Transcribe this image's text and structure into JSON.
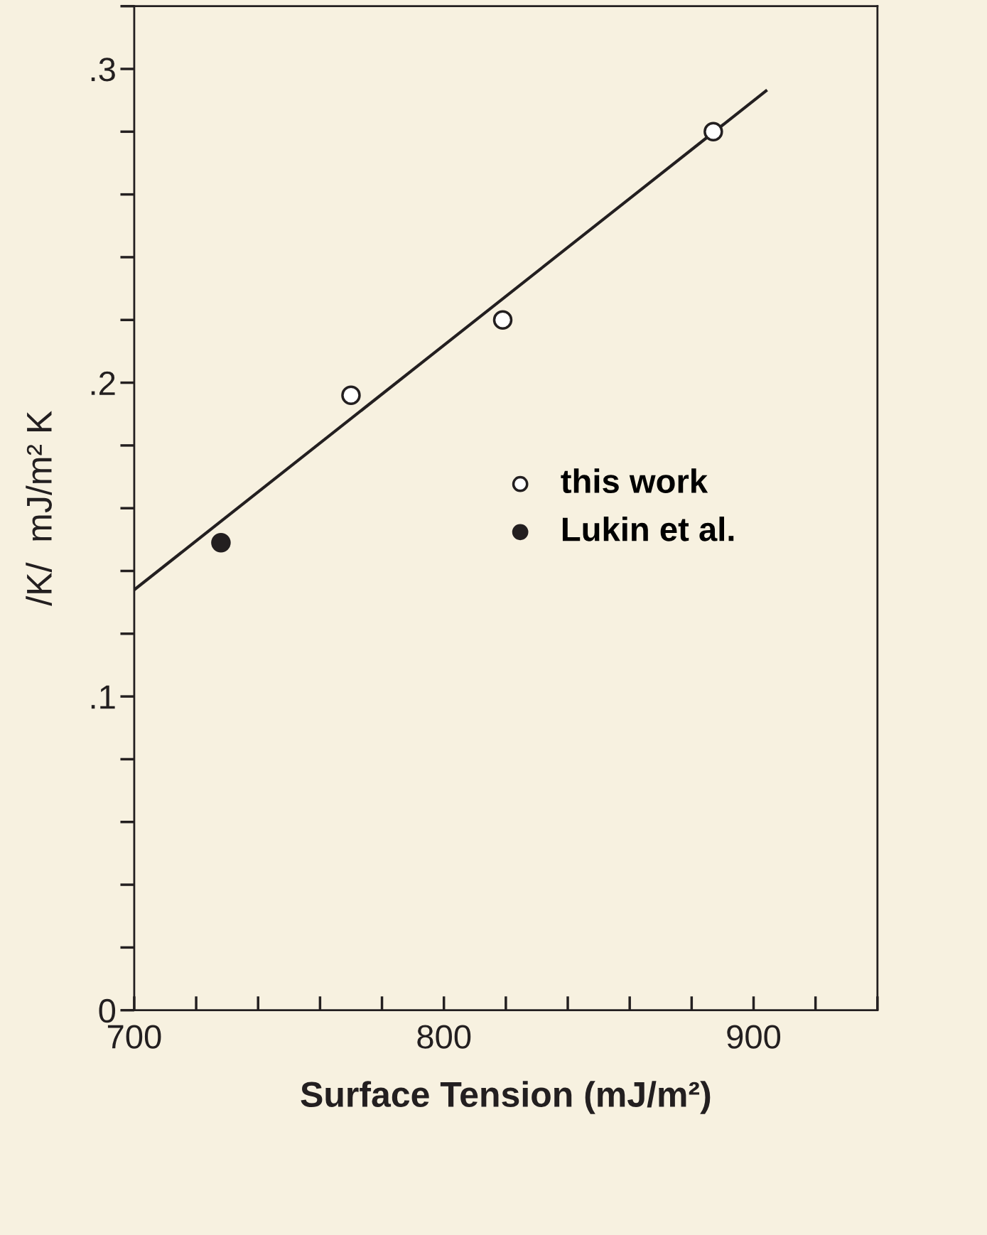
{
  "chart_data": {
    "type": "scatter",
    "xlabel": "Surface Tension (mJ/m²)",
    "ylabel": "/K/  mJ/m² K",
    "xlim": [
      700,
      940
    ],
    "ylim": [
      0,
      0.32
    ],
    "xticks": [
      700,
      800,
      900
    ],
    "yticks": [
      {
        "value": 0,
        "label": "0"
      },
      {
        "value": 0.1,
        "label": ".1"
      },
      {
        "value": 0.2,
        "label": ".2"
      },
      {
        "value": 0.3,
        "label": ".3"
      }
    ],
    "grid": false,
    "legend": "right",
    "marker": "circle",
    "series": [
      {
        "name": "this work",
        "color": "#ffffff",
        "x": [
          770,
          819,
          887
        ],
        "values": [
          0.196,
          0.22,
          0.28
        ]
      },
      {
        "name": "Lukin et al.",
        "color": "#231f20",
        "x": [
          728
        ],
        "values": [
          0.149
        ]
      },
      {
        "type": "line",
        "color": "#231f20",
        "line_style": "solid",
        "marker": "none",
        "x": [
          700,
          904
        ],
        "values": [
          0.134,
          0.293
        ]
      }
    ]
  }
}
